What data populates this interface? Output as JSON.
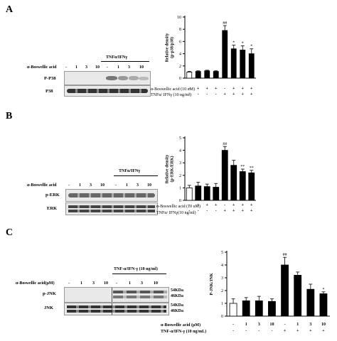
{
  "panels": {
    "A": {
      "letter": "A",
      "treatment_label": "α-Boswellic acid",
      "doses": [
        "-",
        "1",
        "3",
        "10",
        "-",
        "1",
        "3",
        "10"
      ],
      "stim_label": "TNFα/IFNγ",
      "rows": [
        "P-P38",
        "P38"
      ],
      "conds_label1": "α-Boswellic acid (10 uM)",
      "conds_label2": "TNFα/ IFNγ (10 ng/ml)"
    },
    "B": {
      "letter": "B",
      "treatment_label": "α-Boswellic acid",
      "doses": [
        "-",
        "1",
        "3",
        "10",
        "-",
        "1",
        "3",
        "10"
      ],
      "stim_label": "TNFα/IFNγ",
      "rows": [
        "p-ERK",
        "ERK"
      ],
      "conds_label1": "α-Boswellic acid (10 uM)",
      "conds_label2": "TNFα/ IFNγ(10 ng/ml)"
    },
    "C": {
      "letter": "C",
      "treatment_label": "α-Boswellic acid(μM)",
      "doses": [
        "-",
        "1",
        "3",
        "10",
        "-",
        "1",
        "3",
        "10"
      ],
      "stim_label": "TNF-α/IFN-γ (10 ng/ml)",
      "rows": [
        "p-JNK",
        "JNK"
      ],
      "mw_top": [
        "54KDa",
        "46KDa"
      ],
      "mw_bottom": [
        "54KDa",
        "46KDa"
      ],
      "conds_label1": "α-Boswellic acid (μM)",
      "conds_label2": "TNF-α/IFN-γ (10 ng/mL)"
    }
  },
  "chart_data": [
    {
      "type": "bar",
      "ylabel": "Relative density\n(p-p38/p38)",
      "ylim": [
        0,
        10
      ],
      "yticks": [
        0,
        2,
        4,
        6,
        8,
        10
      ],
      "values": [
        1.0,
        1.1,
        1.2,
        1.1,
        7.8,
        4.8,
        4.6,
        4.0
      ],
      "errors": [
        0.1,
        0.1,
        0.1,
        0.1,
        0.8,
        0.6,
        0.7,
        0.8
      ],
      "fills": [
        "#ffffff",
        "#000000",
        "#000000",
        "#000000",
        "#000000",
        "#000000",
        "#000000",
        "#000000"
      ],
      "sig": [
        "",
        "",
        "",
        "",
        "##",
        "*",
        "*",
        "*"
      ],
      "cond_row1": [
        "-",
        "+",
        "+",
        "+",
        "-",
        "+",
        "+",
        "+"
      ],
      "cond_row2": [
        "-",
        "-",
        "-",
        "-",
        "+",
        "+",
        "+",
        "+"
      ]
    },
    {
      "type": "bar",
      "ylabel": "Relative density\n(p-ERK/ERK)",
      "ylim": [
        0,
        5
      ],
      "yticks": [
        0,
        1,
        2,
        3,
        4,
        5
      ],
      "values": [
        1.0,
        1.15,
        1.1,
        1.05,
        4.0,
        2.8,
        2.3,
        2.2
      ],
      "errors": [
        0.2,
        0.3,
        0.2,
        0.3,
        0.3,
        0.4,
        0.2,
        0.2
      ],
      "fills": [
        "#ffffff",
        "#000000",
        "#000000",
        "#000000",
        "#000000",
        "#000000",
        "#000000",
        "#000000"
      ],
      "sig": [
        "",
        "",
        "",
        "",
        "##",
        "",
        "**",
        "**"
      ],
      "cond_row1": [
        "-",
        "+",
        "+",
        "+",
        "-",
        "+",
        "+",
        "+"
      ],
      "cond_row2": [
        "-",
        "-",
        "-",
        "-",
        "+",
        "+",
        "+",
        "+"
      ]
    },
    {
      "type": "bar",
      "ylabel": "P-JNK/JNK",
      "ylim": [
        0,
        5
      ],
      "yticks": [
        0,
        1,
        2,
        3,
        4,
        5
      ],
      "values": [
        1.0,
        1.2,
        1.2,
        1.15,
        4.0,
        3.2,
        2.1,
        1.75
      ],
      "errors": [
        0.35,
        0.25,
        0.35,
        0.2,
        0.6,
        0.25,
        0.4,
        0.15
      ],
      "fills": [
        "#ffffff",
        "#000000",
        "#000000",
        "#000000",
        "#000000",
        "#000000",
        "#000000",
        "#000000"
      ],
      "sig": [
        "",
        "",
        "",
        "",
        "##",
        "",
        "",
        "*"
      ],
      "cond_row1": [
        "-",
        "1",
        "3",
        "10",
        "-",
        "1",
        "3",
        "10"
      ],
      "cond_row2": [
        "-",
        "-",
        "-",
        "-",
        "+",
        "+",
        "+",
        "+"
      ]
    }
  ]
}
